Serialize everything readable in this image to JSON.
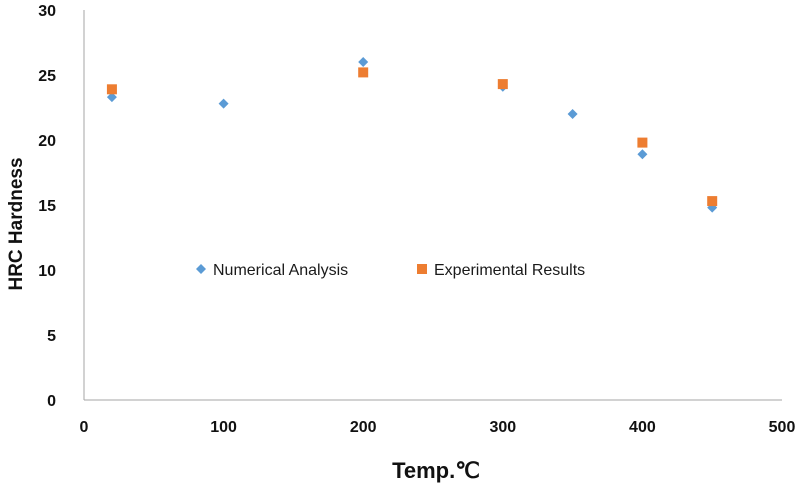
{
  "chart_data": {
    "type": "scatter",
    "title": "",
    "xlabel": "Temp.℃",
    "ylabel": "HRC Hardness",
    "xlim": [
      0,
      500
    ],
    "ylim": [
      0,
      30
    ],
    "x_ticks": [
      "0",
      "100",
      "200",
      "300",
      "400",
      "500"
    ],
    "y_ticks": [
      "0",
      "5",
      "10",
      "15",
      "20",
      "25",
      "30"
    ],
    "grid": false,
    "legend_position": "center",
    "series": [
      {
        "name": "Numerical Analysis",
        "marker": "diamond",
        "color": "#5B9BD5",
        "points": [
          {
            "x": 20,
            "y": 23.3
          },
          {
            "x": 100,
            "y": 22.8
          },
          {
            "x": 200,
            "y": 26.0
          },
          {
            "x": 300,
            "y": 24.1
          },
          {
            "x": 350,
            "y": 22.0
          },
          {
            "x": 400,
            "y": 18.9
          },
          {
            "x": 450,
            "y": 14.8
          }
        ]
      },
      {
        "name": "Experimental Results",
        "marker": "square",
        "color": "#ED7D31",
        "points": [
          {
            "x": 20,
            "y": 23.9
          },
          {
            "x": 200,
            "y": 25.2
          },
          {
            "x": 300,
            "y": 24.3
          },
          {
            "x": 400,
            "y": 19.8
          },
          {
            "x": 450,
            "y": 15.3
          }
        ]
      }
    ]
  }
}
